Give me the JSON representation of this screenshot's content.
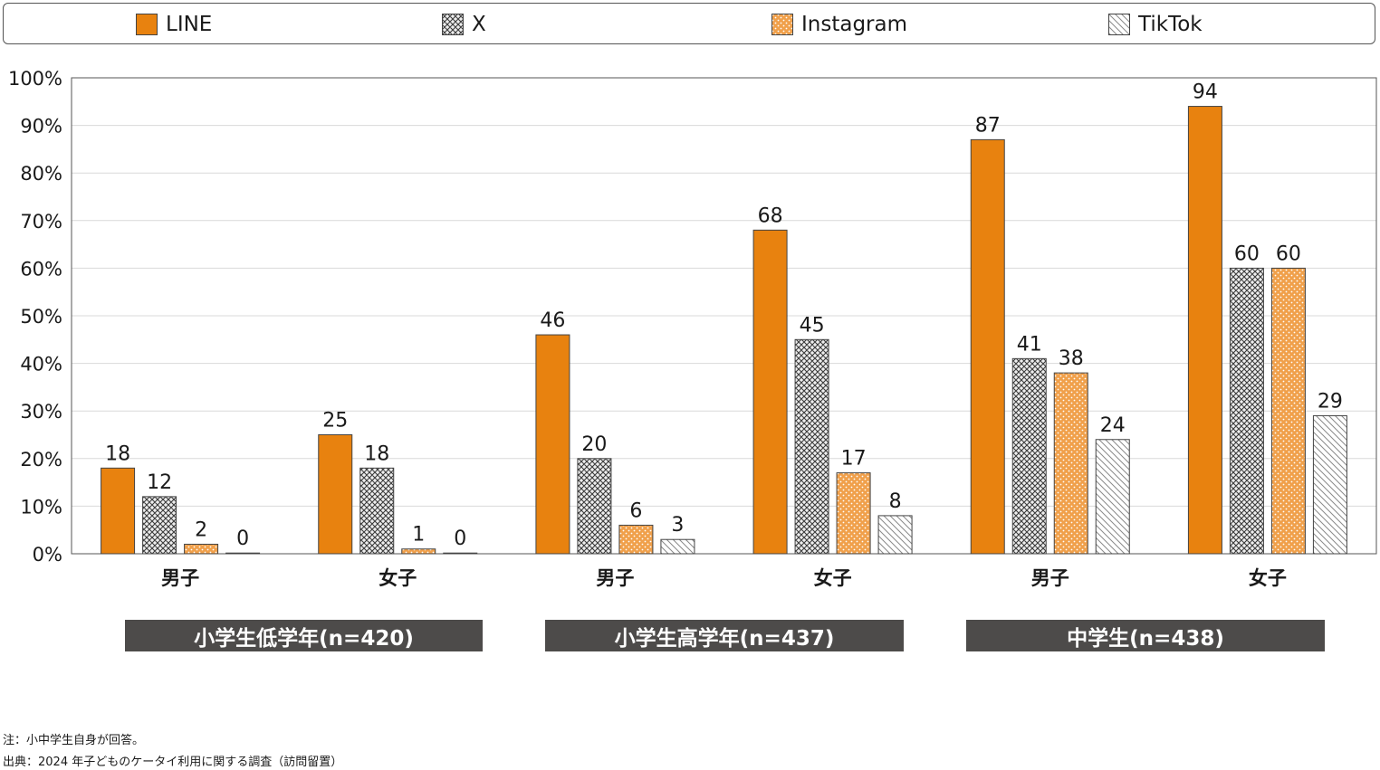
{
  "chart_data": {
    "type": "bar",
    "ylim": [
      0,
      100
    ],
    "yticks": [
      "0%",
      "10%",
      "20%",
      "30%",
      "40%",
      "50%",
      "60%",
      "70%",
      "80%",
      "90%",
      "100%"
    ],
    "grid": true,
    "legend_position": "top",
    "categories": [
      "男子",
      "女子",
      "男子",
      "女子",
      "男子",
      "女子"
    ],
    "groups": [
      {
        "label": "小学生低学年(n=420)"
      },
      {
        "label": "小学生高学年(n=437)"
      },
      {
        "label": "中学生(n=438)"
      }
    ],
    "series": [
      {
        "name": "LINE",
        "values": [
          18,
          25,
          46,
          68,
          87,
          94
        ],
        "labels": [
          "18",
          "25",
          "46",
          "68",
          "87",
          "94"
        ],
        "color": "#e8820f",
        "pattern": "solid"
      },
      {
        "name": "X",
        "values": [
          12,
          18,
          20,
          45,
          41,
          60
        ],
        "labels": [
          "12",
          "18",
          "20",
          "45",
          "41",
          "60"
        ],
        "color": "#444444",
        "pattern": "crosshatch"
      },
      {
        "name": "Instagram",
        "values": [
          2,
          1,
          6,
          17,
          38,
          60
        ],
        "labels": [
          "2",
          "1",
          "6",
          "17",
          "38",
          "60"
        ],
        "color": "#f0a04b",
        "pattern": "dots"
      },
      {
        "name": "TikTok",
        "values": [
          0,
          0,
          3,
          8,
          24,
          29
        ],
        "labels": [
          "0",
          "0",
          "3",
          "8",
          "24",
          "29"
        ],
        "color": "#777777",
        "pattern": "diagonal"
      }
    ]
  },
  "notes": {
    "note": "注：小中学生自身が回答。",
    "source": "出典：2024 年子どものケータイ利用に関する調査（訪問留置）"
  }
}
